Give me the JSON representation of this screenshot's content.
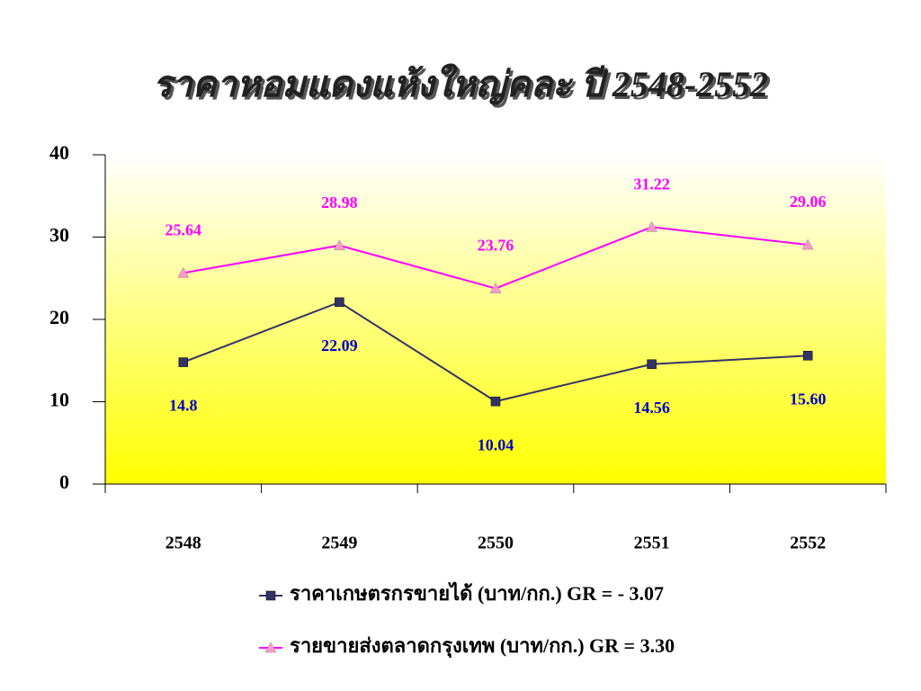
{
  "chart_data": {
    "type": "line",
    "title": "ราคาหอมแดงแห้งใหญ่คละ ปี 2548-2552",
    "categories": [
      "2548",
      "2549",
      "2550",
      "2551",
      "2552"
    ],
    "series": [
      {
        "name": "ราคาเกษตรกรขายได้ (บาท/กก.) GR = - 3.07",
        "color": "#333366",
        "marker": "square",
        "values": [
          14.8,
          22.09,
          10.04,
          14.56,
          15.6
        ],
        "value_labels": [
          "14.8",
          "22.09",
          "10.04",
          "14.56",
          "15.60"
        ],
        "label_color": "#0000cc"
      },
      {
        "name": "รายขายส่งตลาดกรุงเทพ (บาท/กก.) GR = 3.30",
        "color": "#ff00ff",
        "marker": "triangle",
        "values": [
          25.64,
          28.98,
          23.76,
          31.22,
          29.06
        ],
        "label_color": "#ff00ff",
        "marker_color": "#ff99cc"
      }
    ],
    "ylim": [
      0,
      40
    ],
    "yticks": [
      0,
      10,
      20,
      30,
      40
    ],
    "grid": false,
    "legend": "bottom"
  }
}
